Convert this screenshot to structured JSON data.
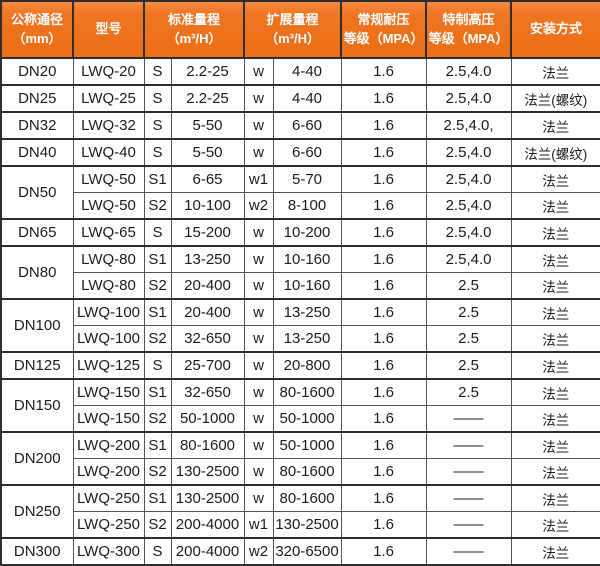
{
  "colors": {
    "header_bg": "#ef7522",
    "header_text": "#ffffff",
    "body_text": "#1c1c1c",
    "border_strong": "#2e2e2e",
    "border_light": "#555555"
  },
  "table": {
    "headers": [
      {
        "line1": "公称通径",
        "line2": "（mm）"
      },
      {
        "line1": "型号",
        "line2": ""
      },
      {
        "line1": "标准量程",
        "line2": "（m³/H）"
      },
      {
        "line1": "扩展量程",
        "line2": "（m³/H）"
      },
      {
        "line1": "常规耐压",
        "line2": "等级（MPA）"
      },
      {
        "line1": "特制高压",
        "line2": "等级（MPA）"
      },
      {
        "line1": "安装方式",
        "line2": ""
      }
    ],
    "groups": [
      {
        "dn": "DN20",
        "rows": [
          {
            "model": "LWQ-20",
            "s": "S",
            "std": "2.2-25",
            "w": "w",
            "ext": "4-40",
            "reg": "1.6",
            "hi": "2.5,4.0",
            "install": "法兰"
          }
        ]
      },
      {
        "dn": "DN25",
        "rows": [
          {
            "model": "LWQ-25",
            "s": "S",
            "std": "2.2-25",
            "w": "w",
            "ext": "4-40",
            "reg": "1.6",
            "hi": "2.5,4.0",
            "install": "法兰(螺纹)"
          }
        ]
      },
      {
        "dn": "DN32",
        "rows": [
          {
            "model": "LWQ-32",
            "s": "S",
            "std": "5-50",
            "w": "w",
            "ext": "6-60",
            "reg": "1.6",
            "hi": "2.5,4.0,",
            "install": "法兰"
          }
        ]
      },
      {
        "dn": "DN40",
        "rows": [
          {
            "model": "LWQ-40",
            "s": "S",
            "std": "5-50",
            "w": "w",
            "ext": "6-60",
            "reg": "1.6",
            "hi": "2.5,4.0",
            "install": "法兰(螺纹)"
          }
        ]
      },
      {
        "dn": "DN50",
        "rows": [
          {
            "model": "LWQ-50",
            "s": "S1",
            "std": "6-65",
            "w": "w1",
            "ext": "5-70",
            "reg": "1.6",
            "hi": "2.5,4.0",
            "install": "法兰"
          },
          {
            "model": "LWQ-50",
            "s": "S2",
            "std": "10-100",
            "w": "w2",
            "ext": "8-100",
            "reg": "1.6",
            "hi": "2.5,4.0",
            "install": "法兰"
          }
        ]
      },
      {
        "dn": "DN65",
        "rows": [
          {
            "model": "LWQ-65",
            "s": "S",
            "std": "15-200",
            "w": "w",
            "ext": "10-200",
            "reg": "1.6",
            "hi": "2.5,4.0",
            "install": "法兰"
          }
        ]
      },
      {
        "dn": "DN80",
        "rows": [
          {
            "model": "LWQ-80",
            "s": "S1",
            "std": "13-250",
            "w": "w",
            "ext": "10-160",
            "reg": "1.6",
            "hi": "2.5,4.0",
            "install": "法兰"
          },
          {
            "model": "LWQ-80",
            "s": "S2",
            "std": "20-400",
            "w": "w",
            "ext": "10-160",
            "reg": "1.6",
            "hi": "2.5",
            "install": "法兰"
          }
        ]
      },
      {
        "dn": "DN100",
        "rows": [
          {
            "model": "LWQ-100",
            "s": "S1",
            "std": "20-400",
            "w": "w",
            "ext": "13-250",
            "reg": "1.6",
            "hi": "2.5",
            "install": "法兰"
          },
          {
            "model": "LWQ-100",
            "s": "S2",
            "std": "32-650",
            "w": "w",
            "ext": "13-250",
            "reg": "1.6",
            "hi": "2.5",
            "install": "法兰"
          }
        ]
      },
      {
        "dn": "DN125",
        "rows": [
          {
            "model": "LWQ-125",
            "s": "S",
            "std": "25-700",
            "w": "w",
            "ext": "20-800",
            "reg": "1.6",
            "hi": "2.5",
            "install": "法兰"
          }
        ]
      },
      {
        "dn": "DN150",
        "rows": [
          {
            "model": "LWQ-150",
            "s": "S1",
            "std": "32-650",
            "w": "w",
            "ext": "80-1600",
            "reg": "1.6",
            "hi": "2.5",
            "install": "法兰"
          },
          {
            "model": "LWQ-150",
            "s": "S2",
            "std": "50-1000",
            "w": "w",
            "ext": "50-1000",
            "reg": "1.6",
            "hi": "——",
            "install": "法兰"
          }
        ]
      },
      {
        "dn": "DN200",
        "rows": [
          {
            "model": "LWQ-200",
            "s": "S1",
            "std": "80-1600",
            "w": "w",
            "ext": "50-1000",
            "reg": "1.6",
            "hi": "——",
            "install": "法兰"
          },
          {
            "model": "LWQ-200",
            "s": "S2",
            "std": "130-2500",
            "w": "w",
            "ext": "80-1600",
            "reg": "1.6",
            "hi": "——",
            "install": "法兰"
          }
        ]
      },
      {
        "dn": "DN250",
        "rows": [
          {
            "model": "LWQ-250",
            "s": "S1",
            "std": "130-2500",
            "w": "w",
            "ext": "80-1600",
            "reg": "1.6",
            "hi": "——",
            "install": "法兰"
          },
          {
            "model": "LWQ-250",
            "s": "S2",
            "std": "200-4000",
            "w": "w1",
            "ext": "130-2500",
            "reg": "1.6",
            "hi": "——",
            "install": "法兰"
          }
        ]
      },
      {
        "dn": "DN300",
        "rows": [
          {
            "model": "LWQ-300",
            "s": "S",
            "std": "200-4000",
            "w": "w2",
            "ext": "320-6500",
            "reg": "1.6",
            "hi": "——",
            "install": "法兰"
          }
        ]
      }
    ]
  }
}
